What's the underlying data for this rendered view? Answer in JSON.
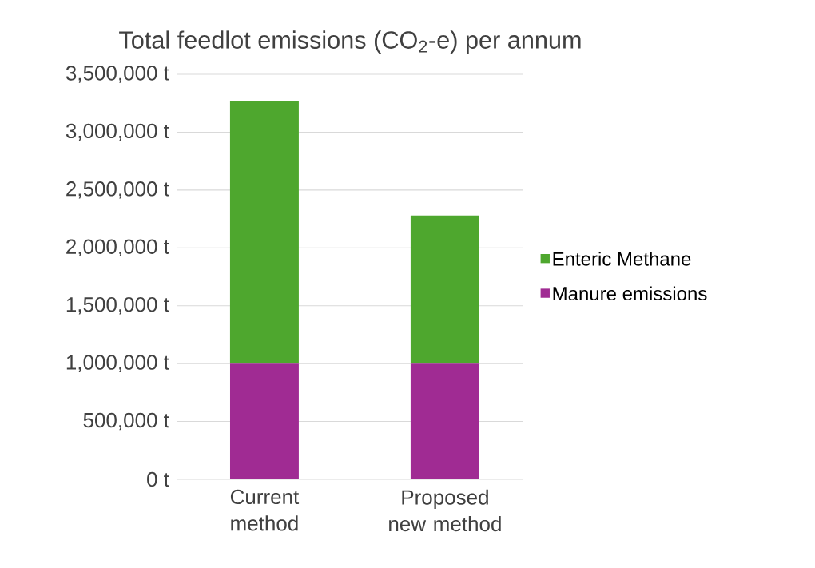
{
  "chart_data": {
    "type": "bar",
    "stacked": true,
    "title": "Total feedlot emissions (CO$_{2}$-e) per annum",
    "categories": [
      "Current method",
      "Proposed new method"
    ],
    "series": [
      {
        "name": "Manure emissions",
        "color": "#a02b93",
        "values": [
          1000000,
          1000000
        ]
      },
      {
        "name": "Enteric Methane",
        "color": "#4ea72e",
        "values": [
          2270000,
          1280000
        ]
      }
    ],
    "ylim": [
      0,
      3500000
    ],
    "yticks": [
      {
        "value": 0,
        "label": "0 t"
      },
      {
        "value": 500000,
        "label": "500,000 t"
      },
      {
        "value": 1000000,
        "label": "1,000,000 t"
      },
      {
        "value": 1500000,
        "label": "1,500,000 t"
      },
      {
        "value": 2000000,
        "label": "2,000,000 t"
      },
      {
        "value": 2500000,
        "label": "2,500,000 t"
      },
      {
        "value": 3000000,
        "label": "3,000,000 t"
      },
      {
        "value": 3500000,
        "label": "3,500,000 t"
      }
    ],
    "grid": "y",
    "legend": "right"
  }
}
